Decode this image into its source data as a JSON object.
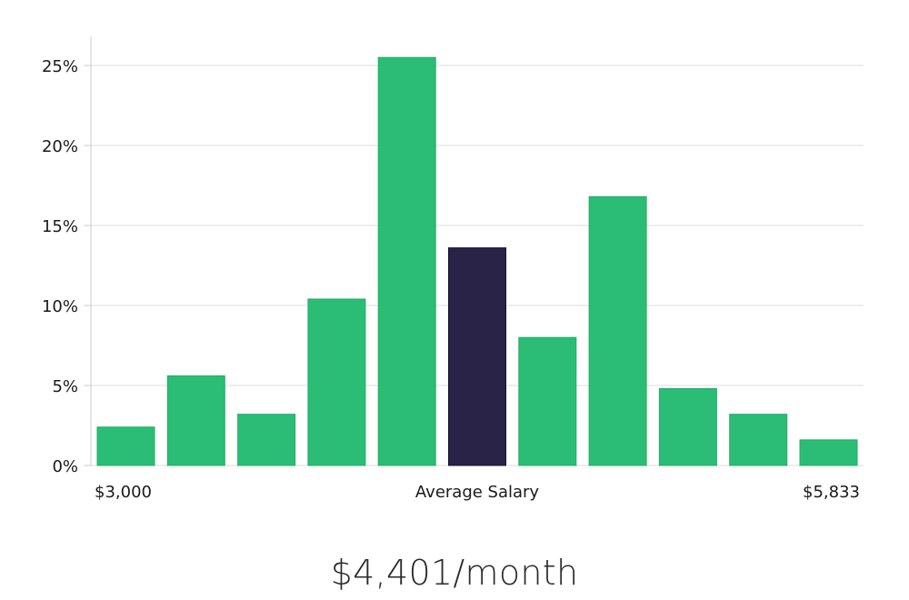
{
  "chart_data": {
    "type": "bar",
    "values": [
      2.4,
      5.6,
      3.2,
      10.4,
      25.5,
      13.6,
      8.0,
      16.8,
      4.8,
      3.2,
      1.6
    ],
    "highlight_index": 5,
    "ylim": [
      0,
      27
    ],
    "yticks": [
      0,
      5,
      10,
      15,
      20,
      25
    ],
    "ytick_labels": [
      "0%",
      "5%",
      "10%",
      "15%",
      "20%",
      "25%"
    ],
    "x_min_label": "$3,000",
    "x_center_label": "Average Salary",
    "x_max_label": "$5,833",
    "grid": true,
    "colors": {
      "bar": "#2bbd76",
      "highlight": "#282347",
      "grid": "#dddddd",
      "axis": "#cccccc"
    }
  },
  "summary": {
    "salary": "$4,401/month"
  }
}
